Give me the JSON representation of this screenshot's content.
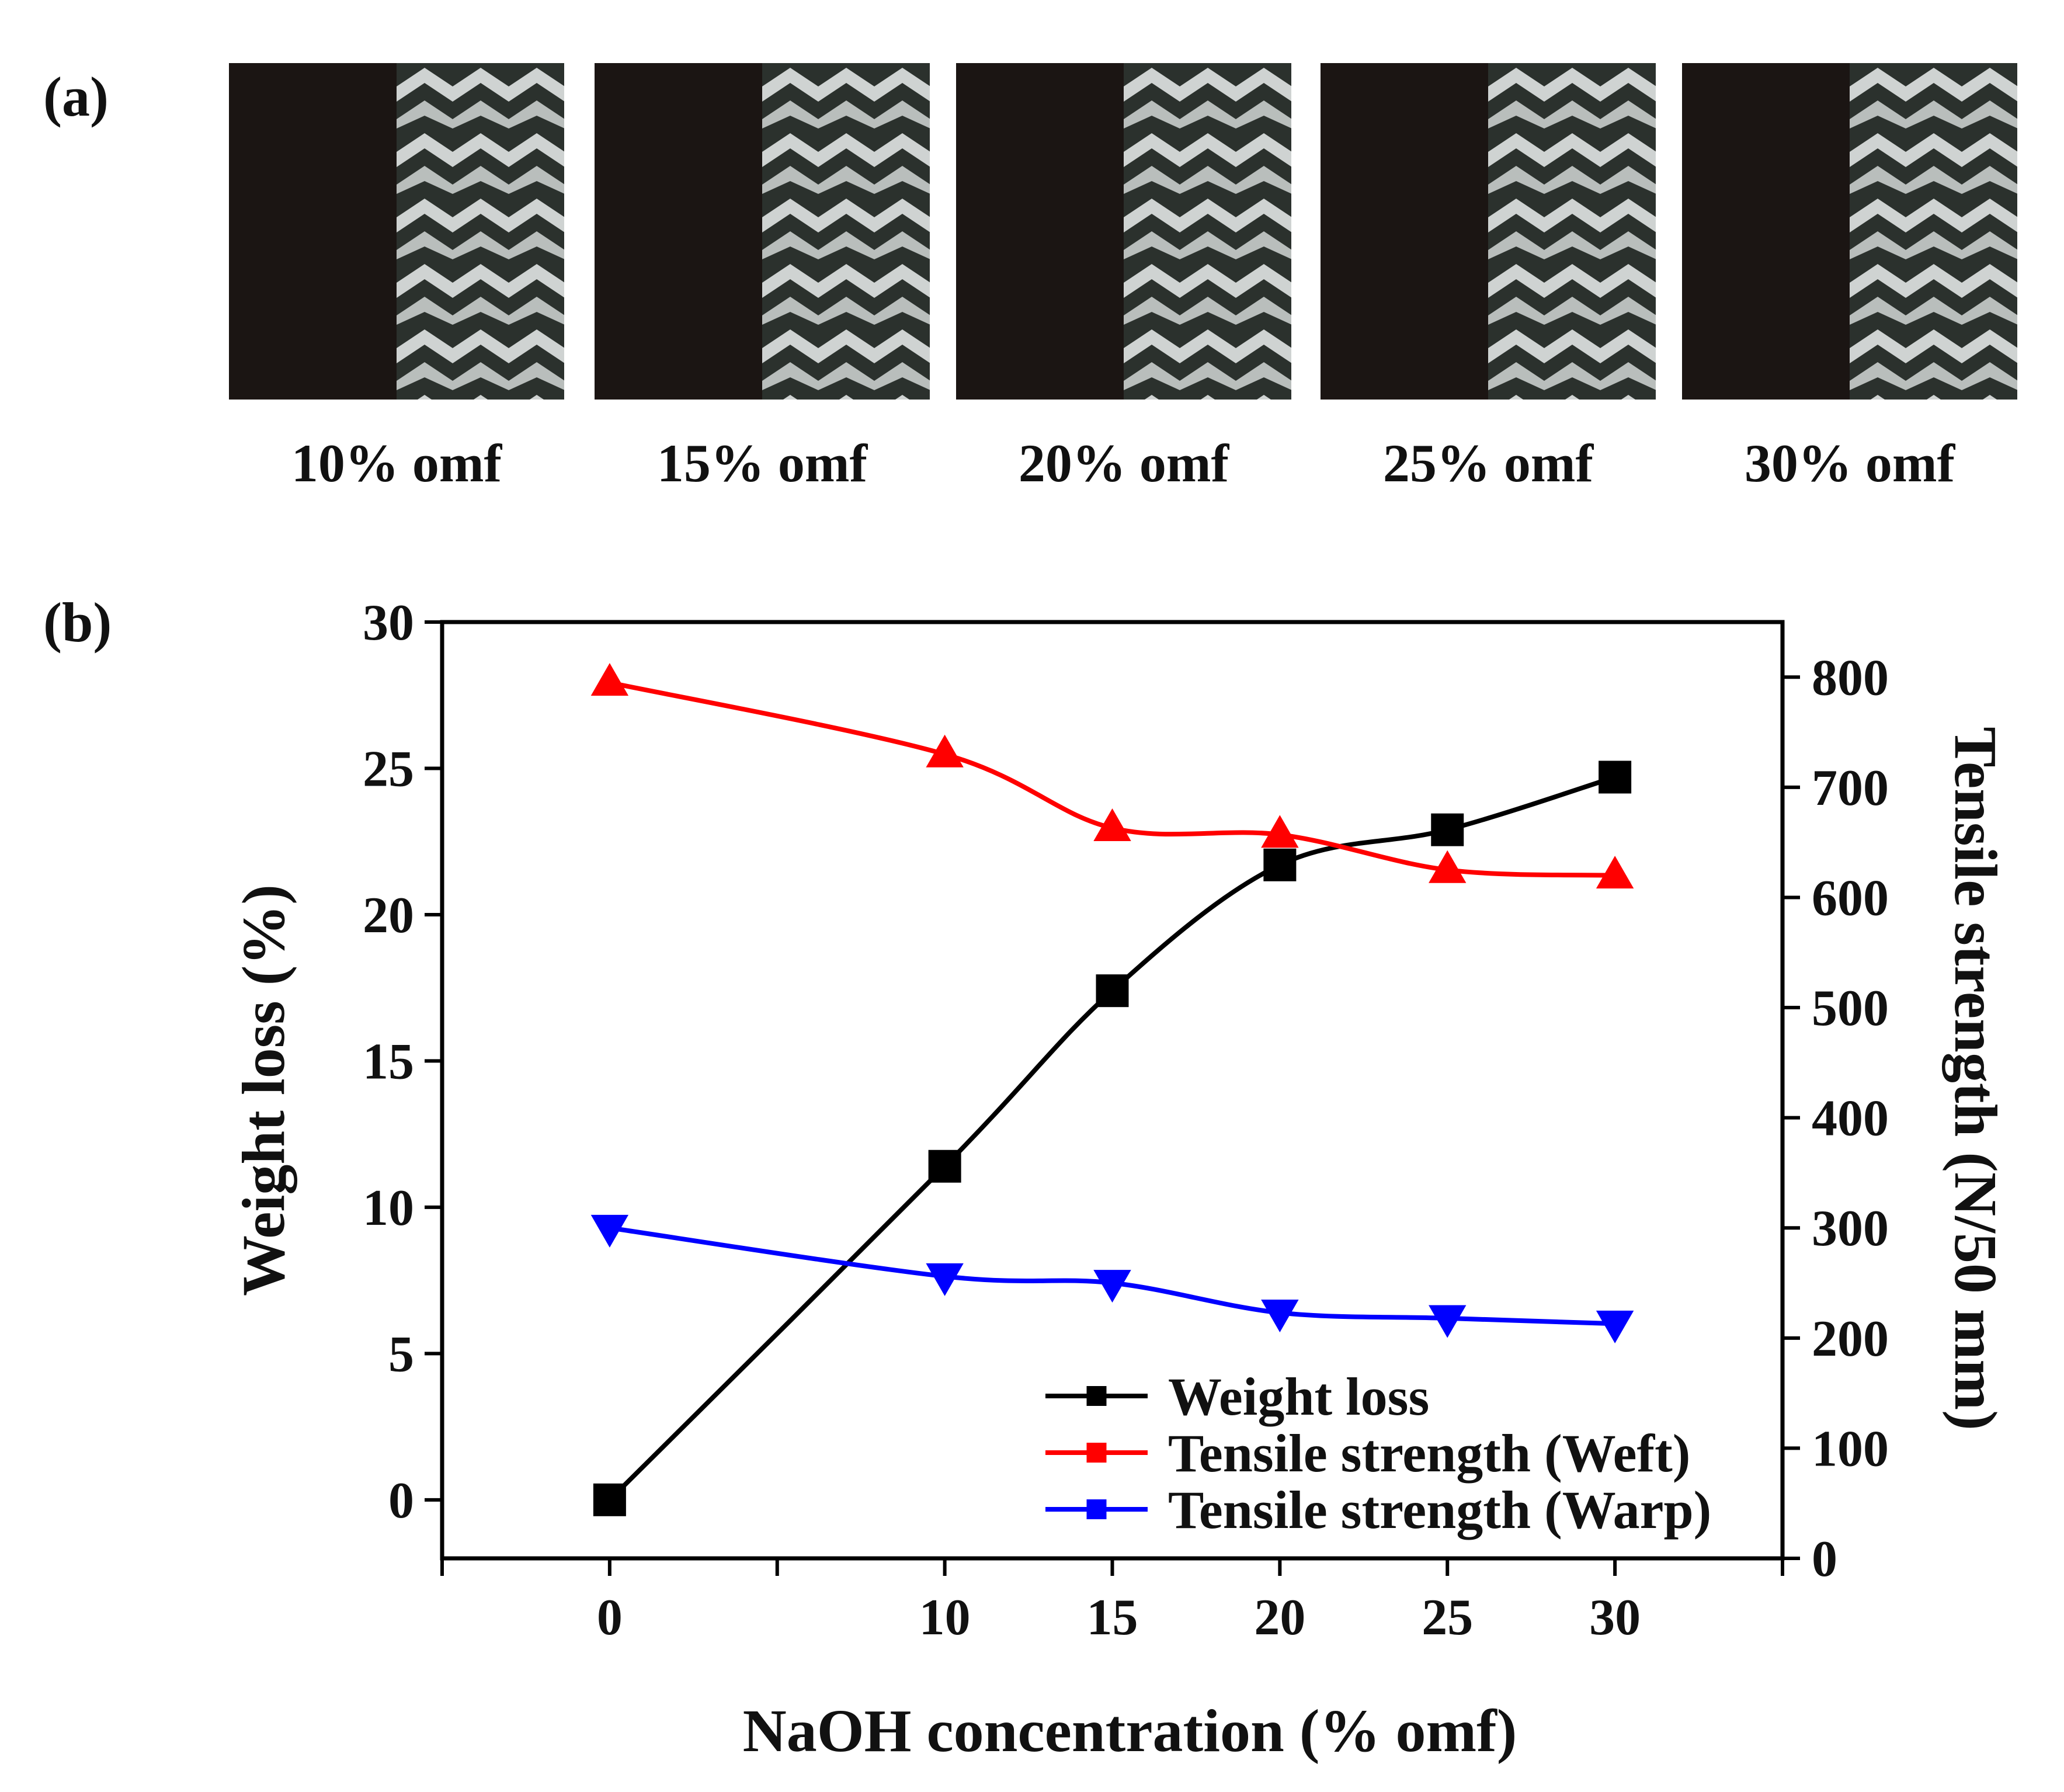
{
  "panel_a": {
    "label": "(a)",
    "samples": [
      {
        "caption": "10% omf"
      },
      {
        "caption": "15% omf"
      },
      {
        "caption": "20% omf"
      },
      {
        "caption": "25% omf"
      },
      {
        "caption": "30% omf"
      }
    ]
  },
  "panel_b": {
    "label": "(b)"
  },
  "colors": {
    "weight_loss": "#000000",
    "weft": "#ff0000",
    "warp": "#0000ff"
  },
  "chart_data": {
    "type": "line",
    "title": "",
    "xlabel": "NaOH concentration (% omf)",
    "ylabel": "Weight loss (%)",
    "y2label": "Tensile strength (N/50 mm)",
    "x": [
      0,
      10,
      15,
      20,
      25,
      30
    ],
    "x_ticks": [
      "0",
      "10",
      "15",
      "20",
      "25",
      "30"
    ],
    "xlim": [
      -5,
      35
    ],
    "ylim": [
      -2,
      30
    ],
    "y_ticks": [
      "0",
      "5",
      "10",
      "15",
      "20",
      "25",
      "30"
    ],
    "y2lim": [
      0,
      850
    ],
    "y2_ticks": [
      "0",
      "100",
      "200",
      "300",
      "400",
      "500",
      "600",
      "700",
      "800"
    ],
    "legend_position": "bottom-right",
    "grid": false,
    "series": [
      {
        "name": "Weight loss",
        "axis": "left",
        "marker": "square",
        "values": [
          0,
          11.4,
          17.4,
          21.7,
          22.9,
          24.7
        ]
      },
      {
        "name": "Tensile strength (Weft)",
        "axis": "right",
        "marker": "triangle-up",
        "values": [
          795,
          730,
          663,
          657,
          625,
          620
        ]
      },
      {
        "name": "Tensile strength (Warp)",
        "axis": "right",
        "marker": "triangle-down",
        "values": [
          300,
          256,
          250,
          223,
          218,
          213
        ]
      }
    ]
  }
}
